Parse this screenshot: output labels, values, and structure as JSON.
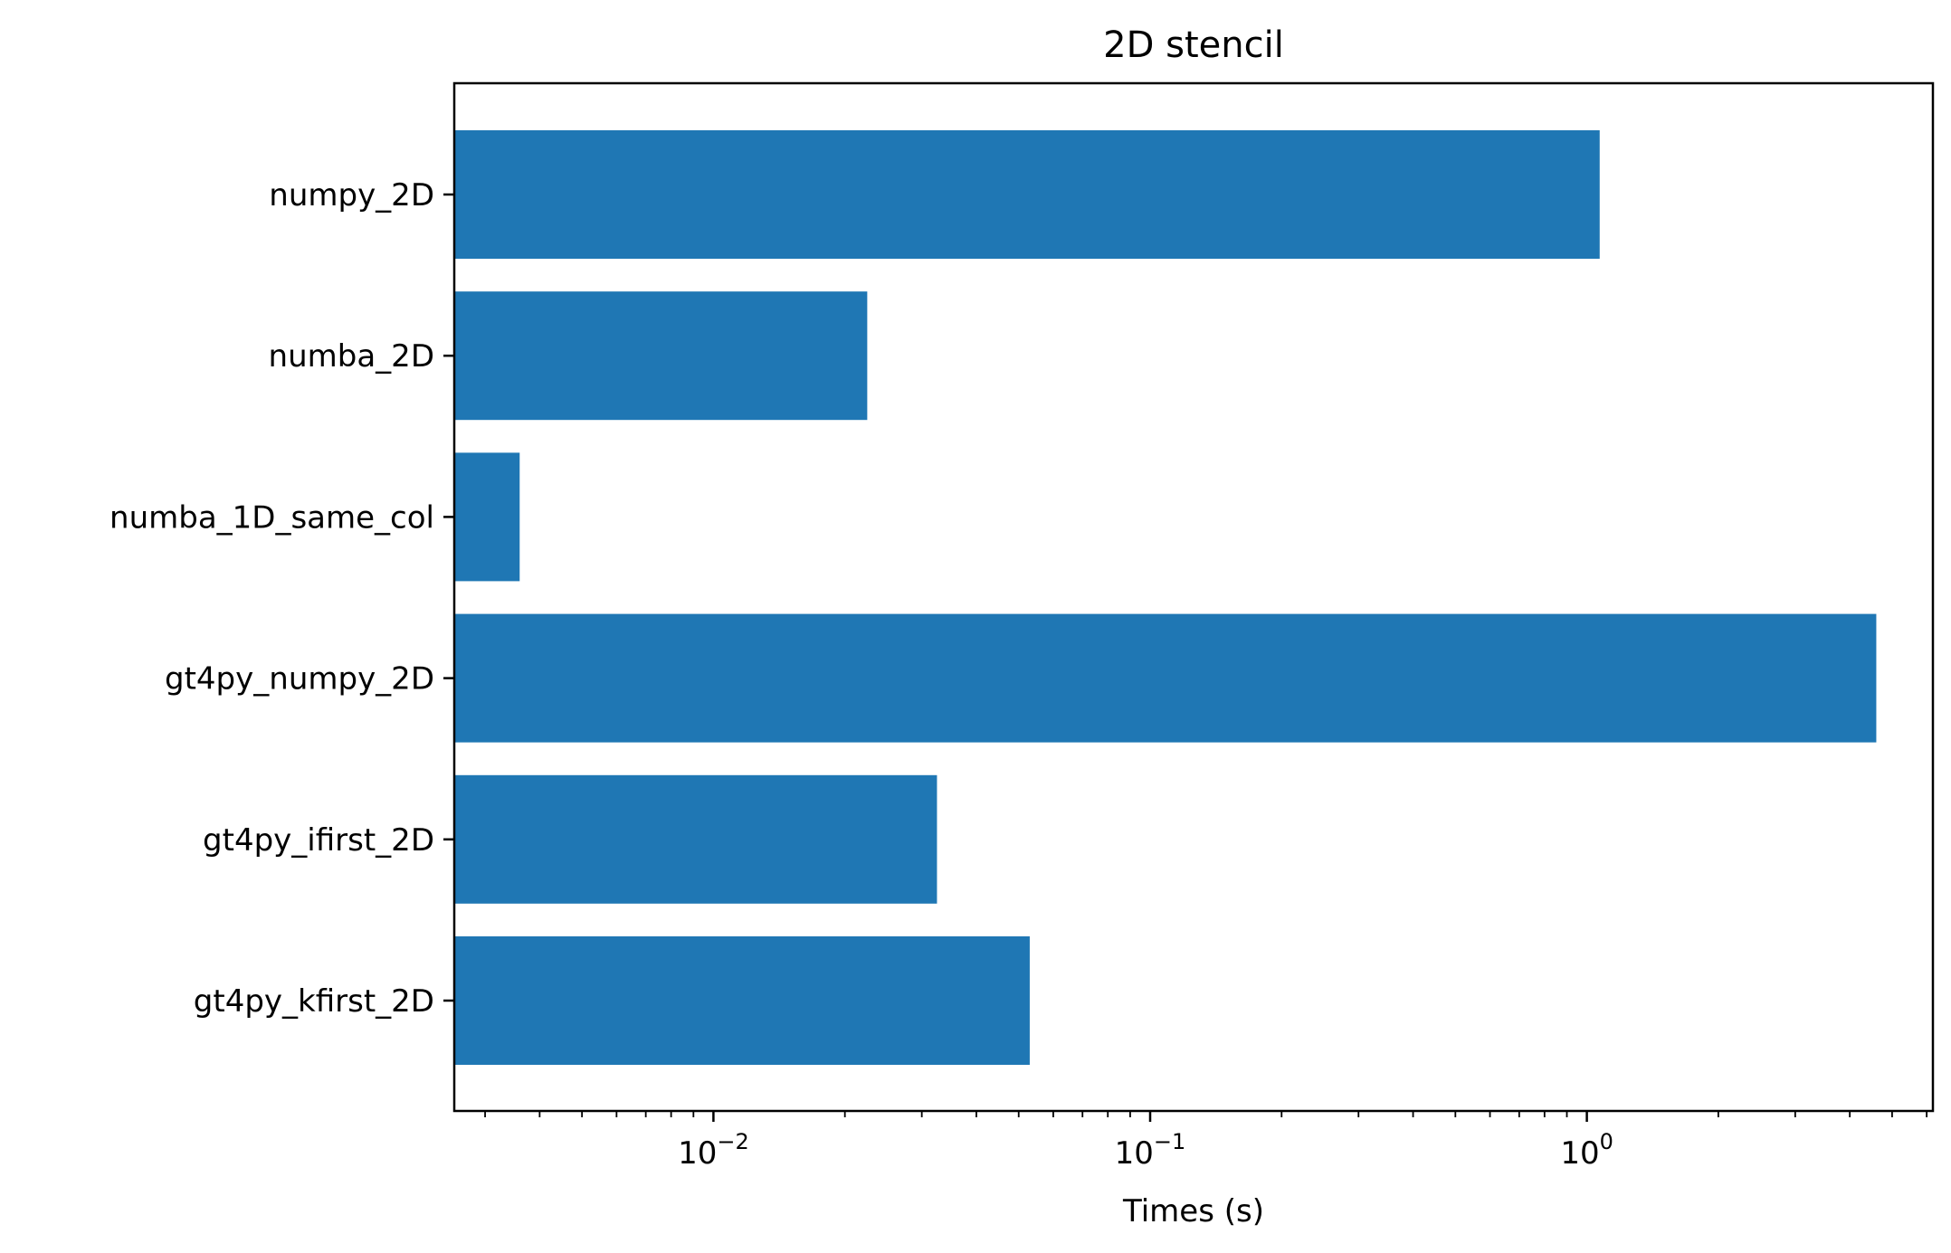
{
  "chart_data": {
    "type": "bar",
    "orientation": "horizontal",
    "title": "2D stencil",
    "xlabel": "Times (s)",
    "ylabel": "",
    "xscale": "log",
    "xlim": [
      0.00255,
      6.2
    ],
    "categories": [
      "numpy_2D",
      "numba_2D",
      "numba_1D_same_col",
      "gt4py_numpy_2D",
      "gt4py_ifirst_2D",
      "gt4py_kfirst_2D"
    ],
    "values": [
      1.07,
      0.0225,
      0.0036,
      4.6,
      0.0325,
      0.053
    ],
    "x_ticks": [
      {
        "base": "10",
        "exp": "−2",
        "value": 0.01
      },
      {
        "base": "10",
        "exp": "−1",
        "value": 0.1
      },
      {
        "base": "10",
        "exp": "0",
        "value": 1
      }
    ],
    "bar_color": "#1f77b4",
    "grid": false,
    "legend": "none"
  }
}
